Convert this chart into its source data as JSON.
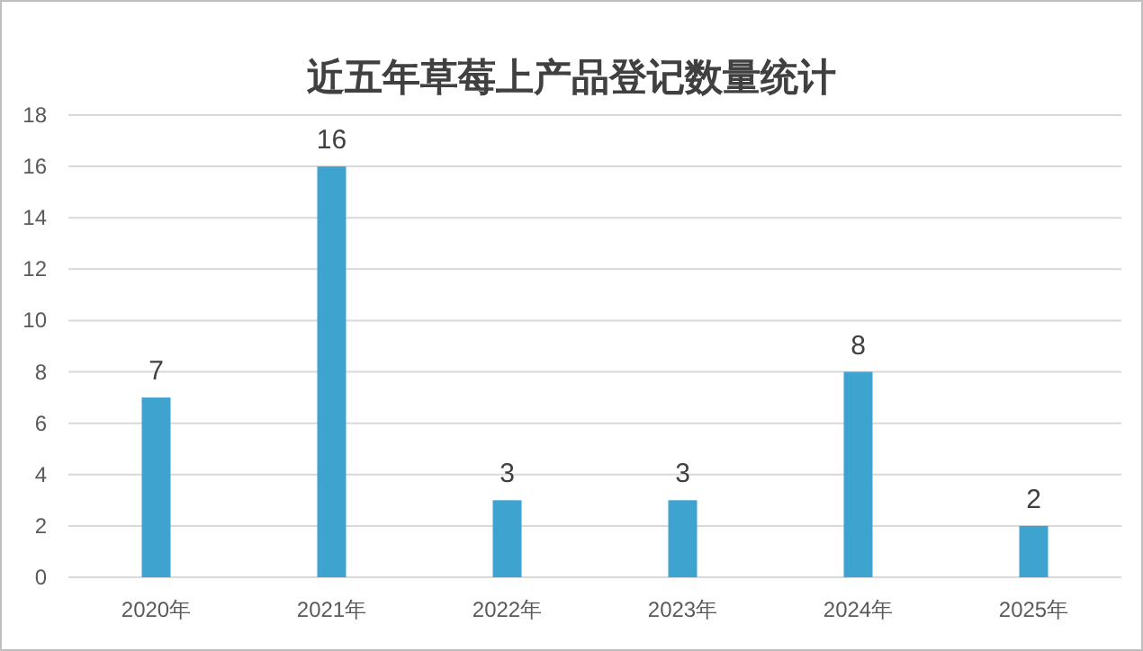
{
  "chart_data": {
    "type": "bar",
    "title": "近五年草莓上产品登记数量统计",
    "categories": [
      "2020年",
      "2021年",
      "2022年",
      "2023年",
      "2024年",
      "2025年"
    ],
    "values": [
      7,
      16,
      3,
      3,
      8,
      2
    ],
    "color": "#3fa3d0",
    "ylim": [
      0,
      18
    ],
    "yticks": [
      0,
      2,
      4,
      6,
      8,
      10,
      12,
      14,
      16,
      18
    ],
    "grid": "y",
    "data_labels": true
  }
}
